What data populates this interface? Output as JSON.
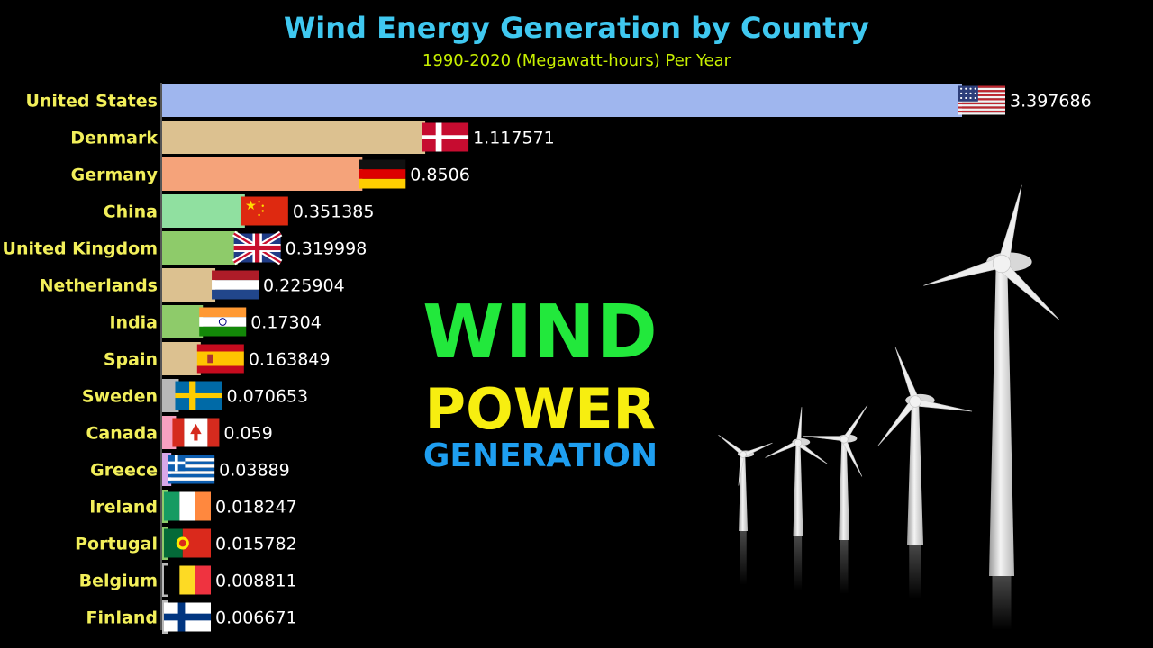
{
  "header": {
    "title": "Wind Energy Generation by Country",
    "subtitle": "1990-2020 (Megawatt-hours) Per Year"
  },
  "overlay": {
    "line1": "WIND",
    "line2": "POWER",
    "line3": "GENERATION"
  },
  "colors": {
    "title": "#3fc8f0",
    "subtitle": "#c8f000",
    "labels": "#f2ef5a",
    "values": "#ffffff",
    "wind": "#22e83c",
    "power": "#f7ee10",
    "generation": "#1e9ef0"
  },
  "chart_data": {
    "type": "bar",
    "orientation": "horizontal",
    "title": "Wind Energy Generation by Country",
    "subtitle": "1990-2020 (Megawatt-hours) Per Year",
    "categories": [
      "United States",
      "Denmark",
      "Germany",
      "China",
      "United Kingdom",
      "Netherlands",
      "India",
      "Spain",
      "Sweden",
      "Canada",
      "Greece",
      "Ireland",
      "Portugal",
      "Belgium",
      "Finland"
    ],
    "values": [
      3.397686,
      1.117571,
      0.8506,
      0.351385,
      0.319998,
      0.225904,
      0.17304,
      0.163849,
      0.070653,
      0.059,
      0.03889,
      0.018247,
      0.015782,
      0.008811,
      0.006671
    ],
    "value_labels": [
      "3.397686",
      "1.117571",
      "0.8506",
      "0.351385",
      "0.319998",
      "0.225904",
      "0.17304",
      "0.163849",
      "0.070653",
      "0.059",
      "0.03889",
      "0.018247",
      "0.015782",
      "0.008811",
      "0.006671"
    ],
    "bar_colors": [
      "#9fb6ee",
      "#dcc190",
      "#f5a37a",
      "#90e0a0",
      "#8ecb6a",
      "#dcc190",
      "#8ecb6a",
      "#dcc190",
      "#b8b8b8",
      "#f7a0c0",
      "#d8a8e8",
      "#8ecb6a",
      "#8ecb6a",
      "#b8b8b8",
      "#b8b8b8"
    ],
    "flags": [
      "flag-usa-icon",
      "flag-denmark-icon",
      "flag-germany-icon",
      "flag-china-icon",
      "flag-uk-icon",
      "flag-netherlands-icon",
      "flag-india-icon",
      "flag-spain-icon",
      "flag-sweden-icon",
      "flag-canada-icon",
      "flag-greece-icon",
      "flag-ireland-icon",
      "flag-portugal-icon",
      "flag-belgium-icon",
      "flag-finland-icon"
    ],
    "xlim": [
      0,
      3.397686
    ],
    "grid": false,
    "legend": "none"
  }
}
